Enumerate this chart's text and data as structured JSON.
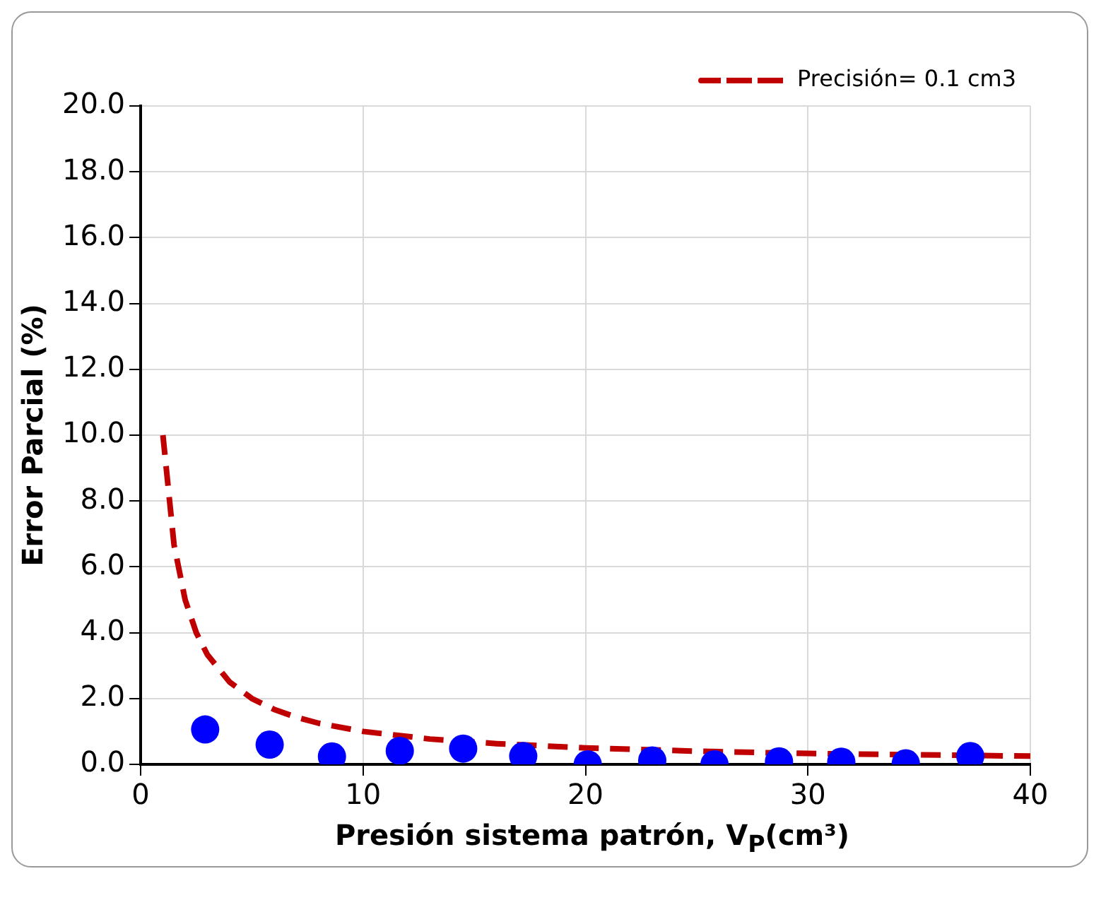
{
  "chart_data": {
    "type": "scatter",
    "xlabel": "Presión sistema patrón, V$_{P}$(cm³)",
    "ylabel": "Error Parcial (%)",
    "xlim": [
      0,
      40
    ],
    "xticks": [
      0,
      10,
      20,
      30,
      40
    ],
    "ylim": [
      0,
      20
    ],
    "yticks": [
      {
        "value": 0,
        "label": "0.0"
      },
      {
        "value": 2,
        "label": "2.0"
      },
      {
        "value": 4,
        "label": "4.0"
      },
      {
        "value": 6,
        "label": "6.0"
      },
      {
        "value": 8,
        "label": "8.0"
      },
      {
        "value": 10,
        "label": "10.0"
      },
      {
        "value": 12,
        "label": "12.0"
      },
      {
        "value": 14,
        "label": "14.0"
      },
      {
        "value": 16,
        "label": "16.0"
      },
      {
        "value": 18,
        "label": "18.0"
      },
      {
        "value": 20,
        "label": "20.0"
      }
    ],
    "grid": true,
    "legend": "top right",
    "marker": "circle",
    "series": [
      {
        "color": "#0000ff",
        "x": [
          2.9,
          5.8,
          8.6,
          11.65,
          14.5,
          17.2,
          20.1,
          23.0,
          25.8,
          28.7,
          31.5,
          34.4,
          37.3
        ],
        "values": [
          1.06,
          0.6,
          0.24,
          0.41,
          0.48,
          0.25,
          0.0,
          0.12,
          0.0,
          0.09,
          0.08,
          0.03,
          0.25
        ]
      },
      {
        "type": "line",
        "name": "Precisión= 0.1 cm3",
        "color": "#c00000",
        "line_style": "dashed",
        "marker": "none",
        "x": [
          1,
          1.5,
          2,
          2.5,
          3,
          4,
          5,
          6,
          7,
          8,
          10,
          13,
          16,
          20,
          25,
          30,
          35,
          40
        ],
        "values": [
          10,
          6.67,
          5,
          4,
          3.33,
          2.5,
          2,
          1.67,
          1.43,
          1.25,
          1,
          0.77,
          0.63,
          0.5,
          0.4,
          0.33,
          0.29,
          0.25
        ]
      }
    ]
  }
}
